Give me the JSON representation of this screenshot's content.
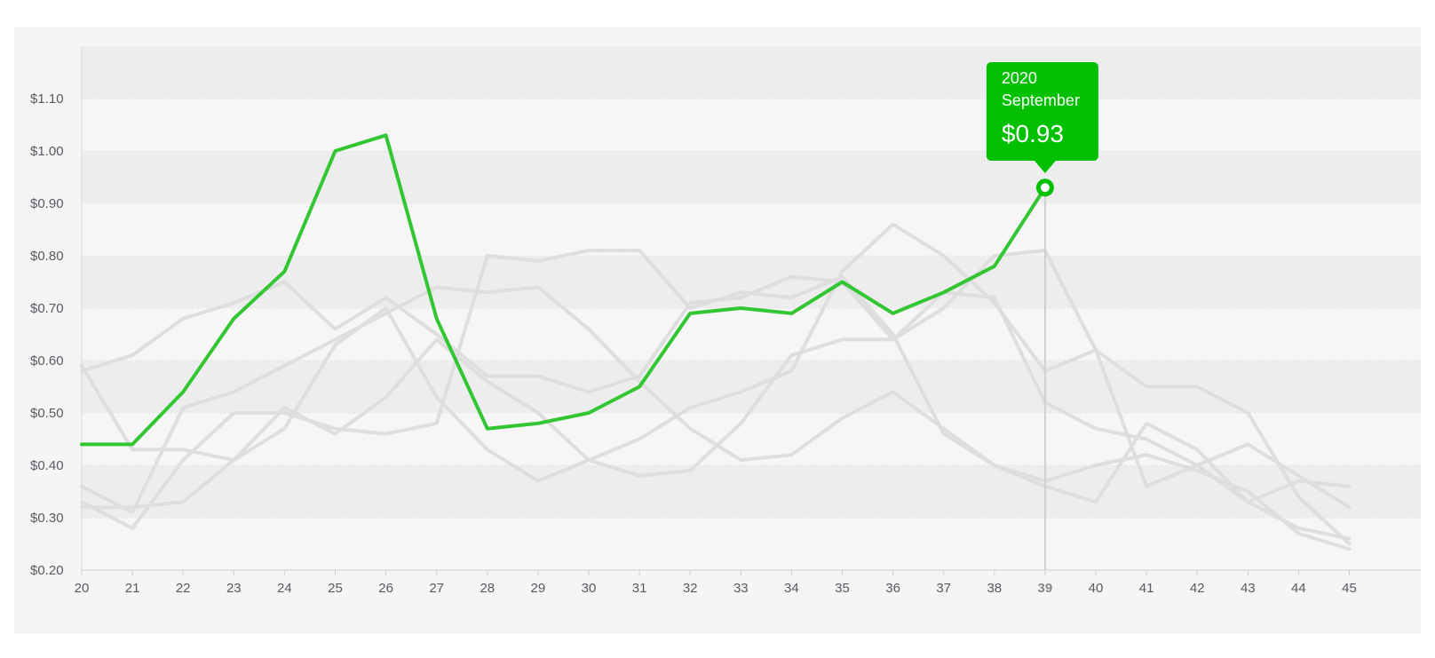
{
  "colors": {
    "highlight": "#33c633",
    "tooltip_bg": "#00c000",
    "context_line": "#dedede",
    "band_dark": "#ededee",
    "band_light": "#f6f6f7"
  },
  "tooltip": {
    "year": "2020",
    "month": "September",
    "value_label": "$0.93"
  },
  "chart_data": {
    "type": "line",
    "x": [
      20,
      21,
      22,
      23,
      24,
      25,
      26,
      27,
      28,
      29,
      30,
      31,
      32,
      33,
      34,
      35,
      36,
      37,
      38,
      39,
      40,
      41,
      42,
      43,
      44,
      45
    ],
    "ylim": [
      0.2,
      1.2
    ],
    "y_ticks": [
      0.2,
      0.3,
      0.4,
      0.5,
      0.6,
      0.7,
      0.8,
      0.9,
      1.0,
      1.1
    ],
    "y_tick_labels": [
      "$0.20",
      "$0.30",
      "$0.40",
      "$0.50",
      "$0.60",
      "$0.70",
      "$0.80",
      "$0.90",
      "$1.00",
      "$1.10"
    ],
    "x_tick_labels": [
      "20",
      "21",
      "22",
      "23",
      "24",
      "25",
      "26",
      "27",
      "28",
      "29",
      "30",
      "31",
      "32",
      "33",
      "34",
      "35",
      "36",
      "37",
      "38",
      "39",
      "40",
      "41",
      "42",
      "43",
      "44",
      "45"
    ],
    "highlighted_x": 39,
    "highlighted_value": 0.93,
    "grid": true,
    "series": [
      {
        "highlight": true,
        "values": [
          0.44,
          0.44,
          0.54,
          0.68,
          0.77,
          1.0,
          1.03,
          0.68,
          0.47,
          0.48,
          0.5,
          0.55,
          0.69,
          0.7,
          0.69,
          0.75,
          0.69,
          0.73,
          0.78,
          0.93,
          null,
          null,
          null,
          null,
          null,
          null
        ]
      },
      {
        "highlight": false,
        "values": [
          0.58,
          0.61,
          0.68,
          0.71,
          0.75,
          0.66,
          0.72,
          0.65,
          0.57,
          0.57,
          0.54,
          0.57,
          0.71,
          0.72,
          0.76,
          0.75,
          0.64,
          0.73,
          0.72,
          0.52,
          0.47,
          0.45,
          0.4,
          0.33,
          0.37,
          0.36
        ]
      },
      {
        "highlight": false,
        "values": [
          0.59,
          0.43,
          0.43,
          0.41,
          0.47,
          0.63,
          0.7,
          0.53,
          0.43,
          0.37,
          0.41,
          0.45,
          0.51,
          0.54,
          0.58,
          0.77,
          0.86,
          0.8,
          0.71,
          0.58,
          0.62,
          0.55,
          0.55,
          0.5,
          0.34,
          0.25
        ]
      },
      {
        "highlight": false,
        "values": [
          0.36,
          0.31,
          0.51,
          0.54,
          0.59,
          0.64,
          0.69,
          0.74,
          0.73,
          0.74,
          0.66,
          0.56,
          0.47,
          0.41,
          0.42,
          0.49,
          0.54,
          0.47,
          0.4,
          0.37,
          0.4,
          0.42,
          0.39,
          0.35,
          0.27,
          0.24
        ]
      },
      {
        "highlight": false,
        "values": [
          0.33,
          0.28,
          0.41,
          0.5,
          0.5,
          0.47,
          0.46,
          0.48,
          0.8,
          0.79,
          0.81,
          0.81,
          0.7,
          0.73,
          0.72,
          0.76,
          0.65,
          0.46,
          0.4,
          0.36,
          0.33,
          0.48,
          0.43,
          0.33,
          0.28,
          0.26
        ]
      },
      {
        "highlight": false,
        "values": [
          0.32,
          0.32,
          0.33,
          0.41,
          0.51,
          0.46,
          0.53,
          0.64,
          0.56,
          0.5,
          0.41,
          0.38,
          0.39,
          0.48,
          0.61,
          0.64,
          0.64,
          0.7,
          0.8,
          0.81,
          0.62,
          0.36,
          0.4,
          0.44,
          0.38,
          0.32
        ]
      }
    ]
  }
}
